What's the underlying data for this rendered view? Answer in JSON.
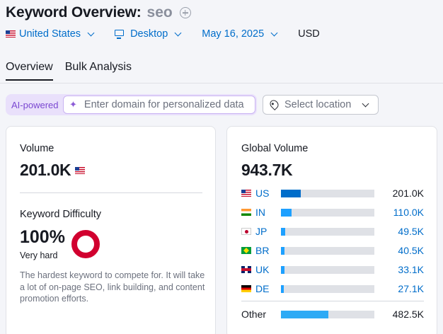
{
  "header": {
    "title": "Keyword Overview:",
    "keyword": "seo"
  },
  "filters": {
    "country": "United States",
    "device": "Desktop",
    "date": "May 16, 2025",
    "currency": "USD"
  },
  "tabs": [
    {
      "label": "Overview",
      "active": true
    },
    {
      "label": "Bulk Analysis",
      "active": false
    }
  ],
  "ai": {
    "label": "AI-powered",
    "placeholder": "Enter domain for personalized data"
  },
  "location": {
    "placeholder": "Select location"
  },
  "volume": {
    "label": "Volume",
    "value": "201.0K"
  },
  "difficulty": {
    "label": "Keyword Difficulty",
    "value": "100%",
    "level": "Very hard",
    "description": "The hardest keyword to compete for. It will take a lot of on-page SEO, link building, and content promotion efforts.",
    "color": "#d1002f"
  },
  "global": {
    "label": "Global Volume",
    "value": "943.7K",
    "countries": [
      {
        "code": "US",
        "volume": "201.0K",
        "share": 0.21,
        "color": "#006dca",
        "flag": "us-flag-icon"
      },
      {
        "code": "IN",
        "volume": "110.0K",
        "share": 0.115,
        "color": "#1ea0ff",
        "flag": "in-flag-icon"
      },
      {
        "code": "JP",
        "volume": "49.5K",
        "share": 0.045,
        "color": "#1ea0ff",
        "flag": "jp-flag-icon"
      },
      {
        "code": "BR",
        "volume": "40.5K",
        "share": 0.04,
        "color": "#1ea0ff",
        "flag": "br-flag-icon"
      },
      {
        "code": "UK",
        "volume": "33.1K",
        "share": 0.035,
        "color": "#1ea0ff",
        "flag": "uk-flag-icon"
      },
      {
        "code": "DE",
        "volume": "27.1K",
        "share": 0.03,
        "color": "#1ea0ff",
        "flag": "de-flag-icon"
      }
    ],
    "other": {
      "label": "Other",
      "volume": "482.5K",
      "share": 0.51,
      "color": "#2eaaf5"
    }
  }
}
